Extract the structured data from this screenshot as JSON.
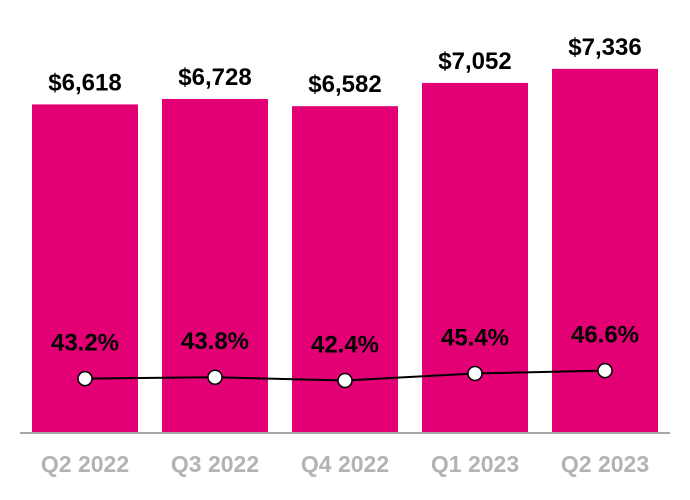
{
  "chart_data": {
    "type": "bar",
    "categories": [
      "Q2 2022",
      "Q3 2022",
      "Q4 2022",
      "Q1 2023",
      "Q2 2023"
    ],
    "series": [
      {
        "type": "bar",
        "values": [
          6618,
          6728,
          6582,
          7052,
          7336
        ],
        "labels": [
          "$6,618",
          "$6,728",
          "$6,582",
          "$7,052",
          "$7,336"
        ],
        "color": "#E20074"
      },
      {
        "type": "line",
        "values": [
          43.2,
          43.8,
          42.4,
          45.4,
          46.6
        ],
        "labels": [
          "43.2%",
          "43.8%",
          "42.4%",
          "45.4%",
          "46.6%"
        ],
        "color": "#000000",
        "marker_fill": "#ffffff"
      }
    ],
    "ylim": [
      0,
      7400
    ],
    "grid": false,
    "legend": "none",
    "axis_color": "#a6a6a6",
    "category_label_color": "#b3b3b3"
  }
}
